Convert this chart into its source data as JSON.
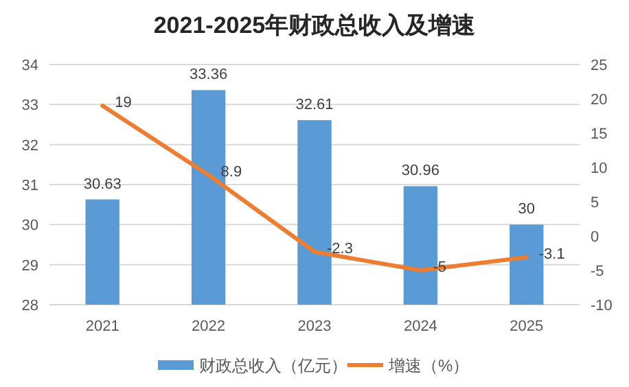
{
  "chart_data": {
    "type": "bar",
    "title": "2021-2025年财政总收入及增速",
    "categories": [
      "2021",
      "2022",
      "2023",
      "2024",
      "2025"
    ],
    "series": [
      {
        "name": "财政总收入（亿元）",
        "color": "#5b9bd5",
        "values": [
          30.63,
          33.36,
          32.61,
          30.96,
          30
        ]
      },
      {
        "name": "增速（%）",
        "type": "line",
        "axis": "y2",
        "color": "#ed7d31",
        "values": [
          19,
          8.9,
          -2.3,
          -5,
          -3.1
        ]
      }
    ],
    "ylim": [
      28,
      34
    ],
    "yticks": [
      28,
      29,
      30,
      31,
      32,
      33,
      34
    ],
    "y2lim": [
      -10,
      25
    ],
    "y2ticks": [
      -10,
      -5,
      0,
      5,
      10,
      15,
      20,
      25
    ],
    "grid": "y",
    "legend": "bottom",
    "data_labels": true
  }
}
